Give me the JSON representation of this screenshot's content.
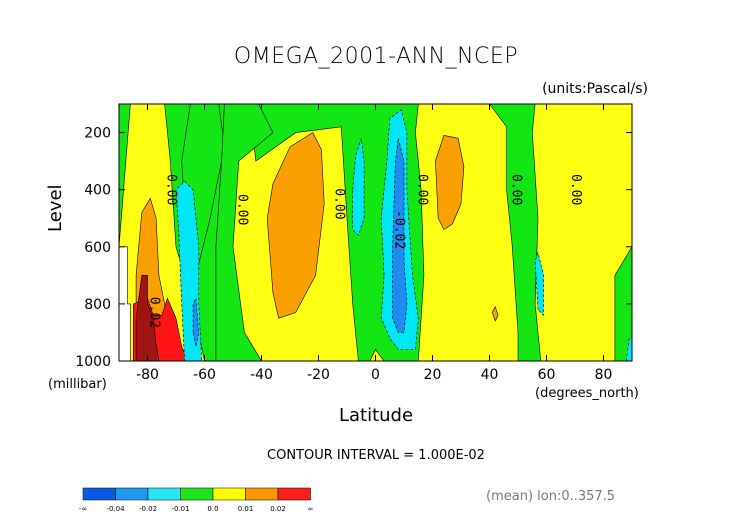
{
  "chart_data": {
    "type": "heatmap",
    "subtype": "filled-contour",
    "title": "OMEGA_2001-ANN_NCEP",
    "units_note": "(units:Pascal/s)",
    "ylabel": "Level",
    "yunit": "(millibar)",
    "xlabel": "Latitude",
    "xunit": "(degrees_north)",
    "xlim": [
      -90,
      90
    ],
    "ylim": [
      1000,
      100
    ],
    "xticks": [
      -80,
      -60,
      -40,
      -20,
      0,
      20,
      40,
      60,
      80
    ],
    "yticks": [
      200,
      400,
      600,
      800,
      1000
    ],
    "contour_interval_text": "CONTOUR INTERVAL = 1.000E-02",
    "footnote": "(mean) lon:0..357.5",
    "contour_labels": [
      {
        "text": "0.00",
        "x": -73,
        "y": 400
      },
      {
        "text": "0.00",
        "x": -48,
        "y": 470
      },
      {
        "text": "0.00",
        "x": -14,
        "y": 450
      },
      {
        "text": "0.00",
        "x": 15,
        "y": 400
      },
      {
        "text": "-0.02",
        "x": 7,
        "y": 540
      },
      {
        "text": "0.00",
        "x": 48,
        "y": 400
      },
      {
        "text": "0.00",
        "x": 69,
        "y": 400
      },
      {
        "text": "0.02",
        "x": -79,
        "y": 830
      }
    ],
    "colorbar": {
      "colors": [
        "#0a5ae6",
        "#1e9bf0",
        "#28e6f5",
        "#1ee61e",
        "#ffff00",
        "#fa9600",
        "#ff1e1e"
      ],
      "labels": [
        "-∞",
        "-0.04",
        "-0.02",
        "-0.01",
        "0.0",
        "0.01",
        "0.02",
        "∞"
      ]
    },
    "levels": {
      "dark_blue": "#1e8cf0",
      "light_blue": "#00e6f5",
      "green": "#14e614",
      "yellow": "#ffff14",
      "orange": "#faa000",
      "red": "#ff1414",
      "dark_red": "#a01414"
    }
  }
}
